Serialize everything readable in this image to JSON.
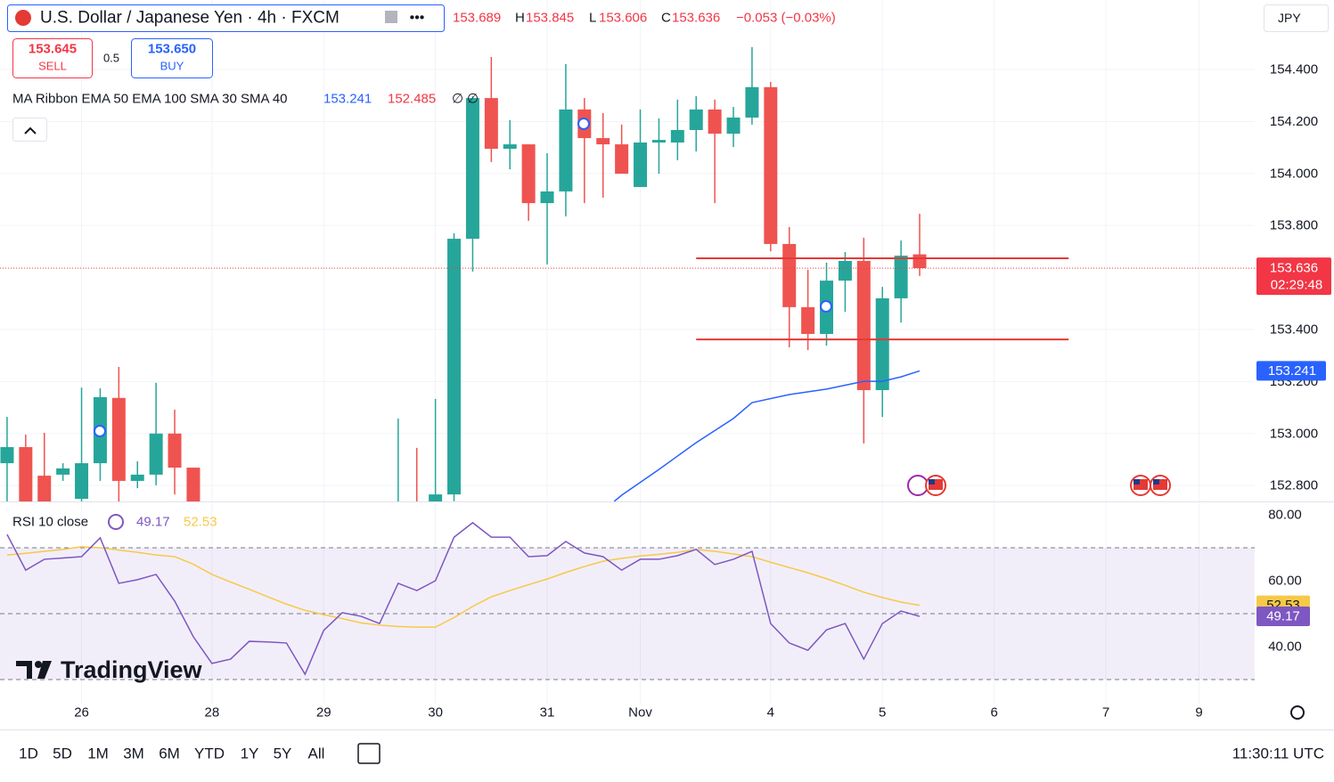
{
  "header": {
    "title": "U.S. Dollar / Japanese Yen · 4h · FXCM",
    "currency": "JPY",
    "ohlc": {
      "open": 153.689,
      "high_label": "H",
      "high": 153.845,
      "low_label": "L",
      "low": 153.606,
      "close_label": "C",
      "close": 153.636,
      "change": "−0.053 (−0.03%)"
    },
    "sell": {
      "price": "153.645",
      "label": "SELL"
    },
    "spread": 0.5,
    "buy": {
      "price": "153.650",
      "label": "BUY"
    },
    "countdown": "02:29:48"
  },
  "chart_data": {
    "type": "candlestick",
    "indicator": {
      "label": "MA Ribbon EMA 50 EMA 100 SMA 30 SMA 40",
      "value1": 153.241,
      "value2": 152.485,
      "value3": "∅",
      "value4": "∅"
    },
    "x": [
      0,
      1,
      2,
      3,
      4,
      5,
      6,
      7,
      8,
      9,
      10,
      21,
      22,
      23,
      24,
      25,
      26,
      27,
      28,
      29,
      30,
      31,
      32,
      33,
      34,
      35,
      36,
      37,
      38,
      39,
      40,
      41,
      42,
      43,
      44,
      45,
      46,
      47,
      48,
      49
    ],
    "open": [
      152.886,
      152.948,
      152.838,
      152.842,
      152.749,
      152.886,
      153.137,
      152.818,
      152.842,
      153.0,
      152.869,
      152.7,
      152.72,
      152.72,
      152.766,
      153.749,
      154.29,
      154.095,
      154.112,
      153.886,
      153.931,
      154.246,
      154.136,
      154.112,
      153.948,
      154.119,
      154.119,
      154.167,
      154.246,
      154.153,
      154.215,
      154.332,
      153.729,
      153.486,
      153.383,
      153.588,
      153.664,
      153.167,
      153.52,
      153.689
    ],
    "high": [
      153.064,
      152.996,
      153.003,
      152.886,
      153.177,
      153.174,
      153.256,
      152.893,
      153.195,
      153.092,
      152.869,
      153.058,
      152.945,
      153.133,
      153.77,
      154.297,
      154.448,
      154.205,
      154.112,
      154.078,
      154.421,
      154.29,
      154.232,
      154.188,
      154.246,
      154.212,
      154.284,
      154.297,
      154.284,
      154.256,
      154.486,
      154.352,
      153.794,
      153.63,
      153.657,
      153.698,
      153.753,
      153.564,
      153.742,
      153.845
    ],
    "low": [
      152.7,
      152.7,
      152.7,
      152.818,
      152.73,
      152.818,
      152.73,
      152.79,
      152.801,
      152.766,
      152.7,
      152.65,
      152.65,
      152.7,
      152.74,
      153.623,
      154.044,
      154.016,
      153.818,
      153.65,
      153.835,
      153.886,
      153.907,
      153.999,
      153.948,
      153.999,
      154.051,
      154.085,
      153.886,
      154.102,
      154.188,
      153.701,
      153.332,
      153.321,
      153.338,
      153.468,
      152.962,
      153.064,
      153.427,
      153.606
    ],
    "close": [
      152.948,
      152.72,
      152.72,
      152.866,
      152.886,
      153.14,
      152.818,
      152.842,
      153.0,
      152.869,
      152.72,
      152.72,
      152.7,
      152.766,
      153.749,
      154.29,
      154.095,
      154.112,
      153.886,
      153.931,
      154.246,
      154.136,
      154.112,
      153.999,
      154.119,
      154.129,
      154.167,
      154.246,
      154.153,
      154.215,
      154.332,
      153.729,
      153.486,
      153.383,
      153.588,
      153.664,
      153.167,
      153.52,
      153.684,
      153.636
    ],
    "up_color": "#26a69a",
    "down_color": "#ef5350",
    "ema": {
      "color": "#2962ff",
      "x": [
        32.6,
        33,
        35,
        37,
        39,
        40,
        42,
        44,
        46,
        47,
        48,
        49
      ],
      "values": [
        152.739,
        152.763,
        152.862,
        152.965,
        153.058,
        153.119,
        153.15,
        153.171,
        153.201,
        153.201,
        153.218,
        153.241
      ]
    },
    "levels": [
      {
        "value": 153.674,
        "from": 37,
        "to": 57,
        "color": "#e53935"
      },
      {
        "value": 153.362,
        "from": 37,
        "to": 57,
        "color": "#e53935"
      }
    ],
    "xlim": [
      -0.38,
      66.99
    ],
    "xticks": [
      {
        "value": 4,
        "label": "26"
      },
      {
        "value": 11,
        "label": "28"
      },
      {
        "value": 17,
        "label": "29"
      },
      {
        "value": 23,
        "label": "30"
      },
      {
        "value": 29,
        "label": "31"
      },
      {
        "value": 34,
        "label": "Nov"
      },
      {
        "value": 41,
        "label": "4"
      },
      {
        "value": 47,
        "label": "5"
      },
      {
        "value": 53,
        "label": "6"
      },
      {
        "value": 59,
        "label": "7"
      },
      {
        "value": 64,
        "label": "9"
      }
    ],
    "ylim": [
      152.739,
      154.667
    ],
    "yticks": [
      {
        "value": 152.8,
        "label": "152.800"
      },
      {
        "value": 153.0,
        "label": "153.000"
      },
      {
        "value": 153.2,
        "label": "153.200"
      },
      {
        "value": 153.4,
        "label": "153.400"
      },
      {
        "value": 153.8,
        "label": "153.800"
      },
      {
        "value": 154.0,
        "label": "154.000"
      },
      {
        "value": 154.2,
        "label": "154.200"
      },
      {
        "value": 154.4,
        "label": "154.400"
      }
    ],
    "grid": true,
    "rsi": {
      "label": "RSI 10 close",
      "color": "#7e57c2",
      "ma_color": "#f7c948",
      "x": [
        0,
        1,
        2,
        3,
        4,
        5,
        6,
        7,
        8,
        9,
        10,
        11,
        12,
        13,
        14,
        15,
        16,
        17,
        18,
        19,
        20,
        21,
        22,
        23,
        24,
        25,
        26,
        27,
        28,
        29,
        30,
        31,
        32,
        33,
        34,
        35,
        36,
        37,
        38,
        39,
        40,
        41,
        42,
        43,
        44,
        45,
        46,
        47,
        48,
        49
      ],
      "values": [
        74.05,
        63.2,
        66.5,
        66.9,
        67.3,
        73.0,
        59.2,
        60.3,
        61.9,
        53.8,
        43.0,
        34.9,
        36.2,
        41.6,
        41.4,
        41.1,
        31.6,
        44.9,
        50.3,
        49.2,
        47.0,
        59.2,
        57.0,
        60.0,
        73.2,
        77.6,
        73.2,
        73.2,
        67.3,
        67.6,
        71.9,
        68.4,
        67.3,
        63.2,
        66.5,
        66.5,
        67.6,
        69.5,
        64.9,
        66.5,
        68.9,
        47.0,
        41.1,
        38.9,
        45.1,
        47.0,
        36.2,
        47.0,
        50.8,
        49.17
      ],
      "ma": [
        67.8,
        68.3,
        68.9,
        69.5,
        70.3,
        70.0,
        69.3,
        68.6,
        67.8,
        67.3,
        65.0,
        61.9,
        59.6,
        57.4,
        55.1,
        52.9,
        51.0,
        49.7,
        48.5,
        47.2,
        46.5,
        46.1,
        45.9,
        45.9,
        48.8,
        52.2,
        55.1,
        57.0,
        58.8,
        60.5,
        62.5,
        64.3,
        65.9,
        66.8,
        67.5,
        68.0,
        68.6,
        69.5,
        68.9,
        68.1,
        67.3,
        65.6,
        64.0,
        62.4,
        60.6,
        58.6,
        56.5,
        54.9,
        53.5,
        52.53
      ],
      "bands": [
        70,
        50,
        30
      ],
      "ylim": [
        22.7,
        84.05
      ],
      "yticks": [
        {
          "value": 40,
          "label": "40.00"
        },
        {
          "value": 60,
          "label": "60.00"
        },
        {
          "value": 80,
          "label": "80.00"
        }
      ]
    }
  },
  "footer": {
    "timeframes": [
      "1D",
      "5D",
      "1M",
      "3M",
      "6M",
      "YTD",
      "1Y",
      "5Y",
      "All"
    ],
    "time": "11:30:11 UTC",
    "brand": "TradingView"
  }
}
